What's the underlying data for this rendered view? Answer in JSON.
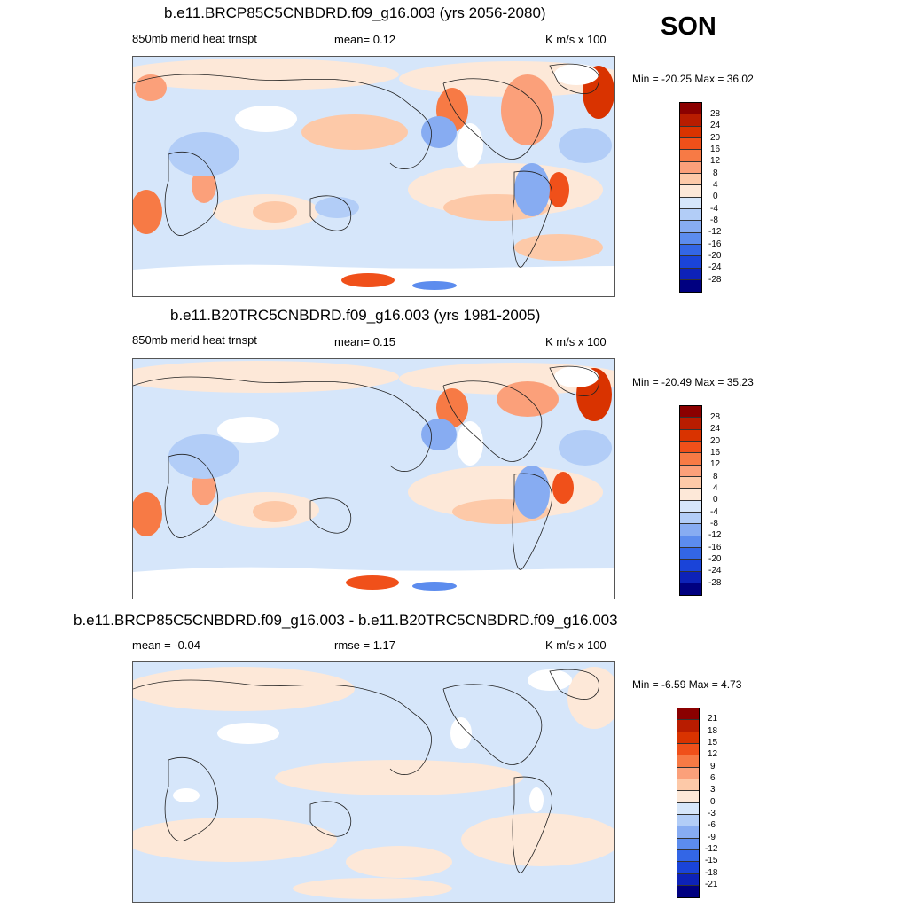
{
  "season": "SON",
  "units": "K m/s x 100",
  "panels": [
    {
      "title": "b.e11.BRCP85C5CNBDRD.f09_g16.003 (yrs 2056-2080)",
      "left_label": "850mb merid heat trnspt",
      "center_label": "mean=   0.12",
      "right_label": "K m/s x 100",
      "minmax": "Min = -20.25 Max =  36.02",
      "colorbar_labels": [
        "28",
        "24",
        "20",
        "16",
        "12",
        "8",
        "4",
        "0",
        "-4",
        "-8",
        "-12",
        "-16",
        "-20",
        "-24",
        "-28"
      ]
    },
    {
      "title": "b.e11.B20TRC5CNBDRD.f09_g16.003 (yrs 1981-2005)",
      "left_label": "850mb merid heat trnspt",
      "center_label": "mean=   0.15",
      "right_label": "K m/s x 100",
      "minmax": "Min = -20.49 Max =  35.23",
      "colorbar_labels": [
        "28",
        "24",
        "20",
        "16",
        "12",
        "8",
        "4",
        "0",
        "-4",
        "-8",
        "-12",
        "-16",
        "-20",
        "-24",
        "-28"
      ]
    },
    {
      "title": "b.e11.BRCP85C5CNBDRD.f09_g16.003 - b.e11.B20TRC5CNBDRD.f09_g16.003",
      "left_label": "mean =  -0.04",
      "center_label": "rmse =   1.17",
      "right_label": "K m/s x 100",
      "minmax": "Min =  -6.59 Max =   4.73",
      "colorbar_labels": [
        "21",
        "18",
        "15",
        "12",
        "9",
        "6",
        "3",
        "0",
        "-3",
        "-6",
        "-9",
        "-12",
        "-15",
        "-18",
        "-21"
      ]
    }
  ],
  "colors": {
    "palette": [
      "#8b0000",
      "#b81c00",
      "#d93300",
      "#f0501a",
      "#f77a45",
      "#fba07a",
      "#fdc9a8",
      "#fde8d8",
      "#d6e6fa",
      "#b2cdf7",
      "#87acf2",
      "#5c8cee",
      "#3366e6",
      "#1a44d9",
      "#0d22b8",
      "#000080"
    ],
    "ocean": "#d6e6fa",
    "land_outline": "#222222"
  }
}
